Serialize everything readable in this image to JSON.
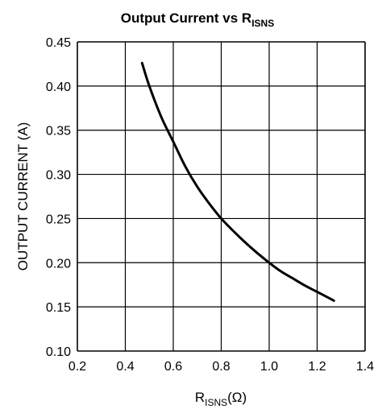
{
  "chart_data": {
    "type": "line",
    "title": {
      "main": "Output Current vs R",
      "sub": "ISNS"
    },
    "xlabel": {
      "main": "R",
      "sub": "ISNS",
      "suffix": "(Ω)"
    },
    "ylabel": "OUTPUT CURRENT (A)",
    "xlim": [
      0.2,
      1.4
    ],
    "ylim": [
      0.1,
      0.45
    ],
    "xticks": [
      "0.2",
      "0.4",
      "0.6",
      "0.8",
      "1.0",
      "1.2",
      "1.4"
    ],
    "yticks": [
      "0.10",
      "0.15",
      "0.20",
      "0.25",
      "0.30",
      "0.35",
      "0.40",
      "0.45"
    ],
    "grid": true,
    "series": [
      {
        "x": [
          0.47,
          0.5,
          0.55,
          0.6,
          0.65,
          0.7,
          0.75,
          0.8,
          0.85,
          0.9,
          0.95,
          1.0,
          1.05,
          1.1,
          1.15,
          1.2,
          1.27
        ],
        "y": [
          0.426,
          0.4,
          0.365,
          0.337,
          0.309,
          0.286,
          0.267,
          0.25,
          0.236,
          0.223,
          0.211,
          0.2,
          0.19,
          0.182,
          0.174,
          0.167,
          0.157
        ]
      }
    ],
    "line_color": "#000000"
  }
}
